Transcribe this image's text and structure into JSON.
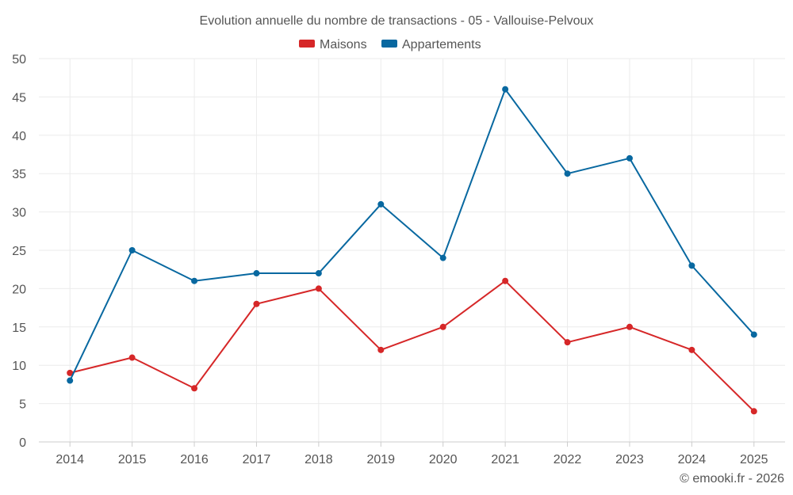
{
  "chart_data": {
    "type": "line",
    "title": "Evolution annuelle du nombre de transactions - 05 - Vallouise-Pelvoux",
    "categories": [
      "2014",
      "2015",
      "2016",
      "2017",
      "2018",
      "2019",
      "2020",
      "2021",
      "2022",
      "2023",
      "2024",
      "2025"
    ],
    "series": [
      {
        "name": "Maisons",
        "color": "#d62728",
        "values": [
          9,
          11,
          7,
          18,
          20,
          12,
          15,
          21,
          13,
          15,
          12,
          4
        ]
      },
      {
        "name": "Appartements",
        "color": "#0868a0",
        "values": [
          8,
          25,
          21,
          22,
          22,
          31,
          24,
          46,
          35,
          37,
          23,
          14
        ]
      }
    ],
    "ylim": [
      0,
      50
    ],
    "yticks": [
      0,
      5,
      10,
      15,
      20,
      25,
      30,
      35,
      40,
      45,
      50
    ],
    "yticks_labels": [
      "0",
      "5",
      "10",
      "15",
      "20",
      "25",
      "30",
      "35",
      "40",
      "45",
      "50"
    ],
    "xlabel": "",
    "ylabel": "",
    "grid": true,
    "legend_position": "top-center"
  },
  "credit": "© emooki.fr - 2026"
}
